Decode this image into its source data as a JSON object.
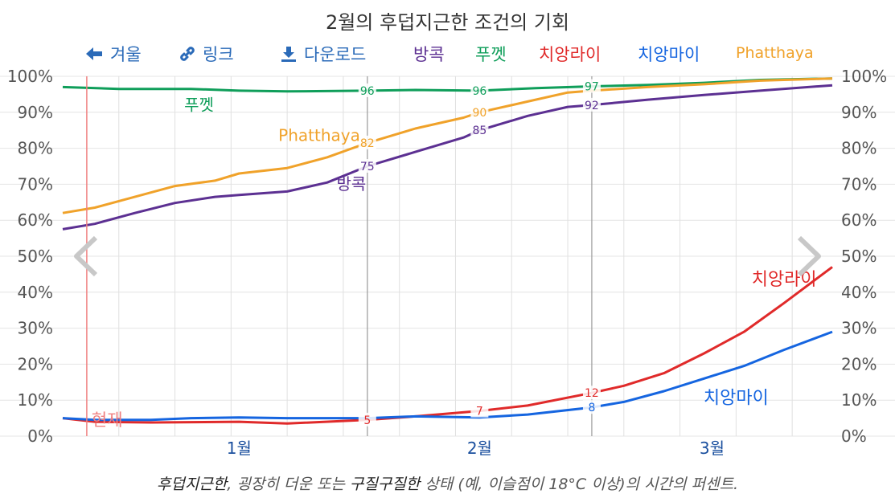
{
  "title": "2월의 후덥지근한 조건의 기회",
  "toolbar": {
    "winter_label": "겨울",
    "link_label": "링크",
    "download_label": "다운로드",
    "series_toggles": [
      "방콕",
      "푸껫",
      "치앙라이",
      "치앙마이",
      "Phatthaya"
    ]
  },
  "caption": {
    "part1": "후덥지근한",
    "part2": ", 굉장히 더운",
    "part3": " 또는 ",
    "part4": "구질구질한",
    "part5": " 상태 (예, 이슬점이 18°C 이상)의 시간의 퍼센트."
  },
  "colors": {
    "bangkok": "#5c3092",
    "phuket": "#0f9e5a",
    "chiangrai": "#e02a2a",
    "chiangmai": "#1565e0",
    "pattaya": "#f0a22a",
    "toolbar": "#2a6ab8",
    "now_line": "#f08080",
    "month_label": "#1a4f9e"
  },
  "icons": [
    "left-arrow-icon",
    "link-icon",
    "download-icon",
    "prev-chevron-icon",
    "next-chevron-icon"
  ],
  "chart_data": {
    "type": "line",
    "x_unit": "date",
    "x_range": [
      "2022-12-25",
      "2023-03-31"
    ],
    "x_month_labels": [
      {
        "label": "1월",
        "date": "2023-01-16"
      },
      {
        "label": "2월",
        "date": "2023-02-15"
      },
      {
        "label": "3월",
        "date": "2023-03-16"
      }
    ],
    "now_marker": {
      "label": "현재",
      "date": "2022-12-28"
    },
    "highlight_dates": [
      "2023-02-01",
      "2023-03-01"
    ],
    "ylim": [
      0,
      100
    ],
    "y_ticks": [
      "0%",
      "10%",
      "20%",
      "30%",
      "40%",
      "50%",
      "60%",
      "70%",
      "80%",
      "90%",
      "100%"
    ],
    "grid": true,
    "series": [
      {
        "name": "푸껫",
        "color": "#0f9e5a",
        "inline_label": "푸껫",
        "points": [
          [
            "2022-12-25",
            97
          ],
          [
            "2023-01-01",
            96.5
          ],
          [
            "2023-01-10",
            96.5
          ],
          [
            "2023-01-16",
            96
          ],
          [
            "2023-01-22",
            95.8
          ],
          [
            "2023-02-01",
            96
          ],
          [
            "2023-02-07",
            96.2
          ],
          [
            "2023-02-15",
            96
          ],
          [
            "2023-02-22",
            96.7
          ],
          [
            "2023-03-01",
            97.2
          ],
          [
            "2023-03-08",
            97.6
          ],
          [
            "2023-03-15",
            98.2
          ],
          [
            "2023-03-22",
            99
          ],
          [
            "2023-03-31",
            99.4
          ]
        ],
        "data_labels": [
          [
            "2023-02-01",
            "96"
          ],
          [
            "2023-02-15",
            "96"
          ],
          [
            "2023-03-01",
            "97"
          ]
        ]
      },
      {
        "name": "Phatthaya",
        "color": "#f0a22a",
        "inline_label": "Phatthaya",
        "points": [
          [
            "2022-12-25",
            62
          ],
          [
            "2022-12-29",
            63.5
          ],
          [
            "2023-01-03",
            66.5
          ],
          [
            "2023-01-08",
            69.5
          ],
          [
            "2023-01-13",
            71
          ],
          [
            "2023-01-16",
            73
          ],
          [
            "2023-01-22",
            74.5
          ],
          [
            "2023-01-27",
            77.5
          ],
          [
            "2023-02-01",
            81.5
          ],
          [
            "2023-02-07",
            85.5
          ],
          [
            "2023-02-13",
            88.5
          ],
          [
            "2023-02-15",
            90
          ],
          [
            "2023-02-21",
            93
          ],
          [
            "2023-02-26",
            95.5
          ],
          [
            "2023-03-01",
            96
          ],
          [
            "2023-03-08",
            97
          ],
          [
            "2023-03-15",
            97.8
          ],
          [
            "2023-03-22",
            98.8
          ],
          [
            "2023-03-31",
            99.4
          ]
        ],
        "data_labels": [
          [
            "2023-02-01",
            "82"
          ],
          [
            "2023-02-15",
            "90"
          ]
        ]
      },
      {
        "name": "방콕",
        "color": "#5c3092",
        "inline_label": "방콕",
        "points": [
          [
            "2022-12-25",
            57.5
          ],
          [
            "2022-12-29",
            59
          ],
          [
            "2023-01-03",
            62
          ],
          [
            "2023-01-08",
            64.8
          ],
          [
            "2023-01-13",
            66.5
          ],
          [
            "2023-01-16",
            67
          ],
          [
            "2023-01-22",
            68
          ],
          [
            "2023-01-27",
            70.5
          ],
          [
            "2023-02-01",
            75
          ],
          [
            "2023-02-07",
            79
          ],
          [
            "2023-02-13",
            83
          ],
          [
            "2023-02-15",
            85
          ],
          [
            "2023-02-21",
            89
          ],
          [
            "2023-02-26",
            91.5
          ],
          [
            "2023-03-01",
            92
          ],
          [
            "2023-03-08",
            93.5
          ],
          [
            "2023-03-15",
            94.8
          ],
          [
            "2023-03-22",
            96
          ],
          [
            "2023-03-31",
            97.5
          ]
        ],
        "data_labels": [
          [
            "2023-02-01",
            "75"
          ],
          [
            "2023-02-15",
            "85"
          ],
          [
            "2023-03-01",
            "92"
          ]
        ]
      },
      {
        "name": "치앙라이",
        "color": "#e02a2a",
        "inline_label": "치앙라이",
        "points": [
          [
            "2022-12-25",
            5
          ],
          [
            "2022-12-29",
            4
          ],
          [
            "2023-01-05",
            3.8
          ],
          [
            "2023-01-16",
            4
          ],
          [
            "2023-01-22",
            3.5
          ],
          [
            "2023-02-01",
            4.5
          ],
          [
            "2023-02-07",
            5.5
          ],
          [
            "2023-02-15",
            7
          ],
          [
            "2023-02-21",
            8.5
          ],
          [
            "2023-03-01",
            12
          ],
          [
            "2023-03-05",
            14
          ],
          [
            "2023-03-10",
            17.5
          ],
          [
            "2023-03-15",
            23
          ],
          [
            "2023-03-20",
            29
          ],
          [
            "2023-03-25",
            37
          ],
          [
            "2023-03-31",
            47
          ]
        ],
        "data_labels": [
          [
            "2023-02-01",
            "5"
          ],
          [
            "2023-02-15",
            "7"
          ],
          [
            "2023-03-01",
            "12"
          ]
        ]
      },
      {
        "name": "치앙마이",
        "color": "#1565e0",
        "inline_label": "치앙마이",
        "points": [
          [
            "2022-12-25",
            5
          ],
          [
            "2022-12-29",
            4.5
          ],
          [
            "2023-01-05",
            4.5
          ],
          [
            "2023-01-10",
            5
          ],
          [
            "2023-01-16",
            5.2
          ],
          [
            "2023-01-22",
            5
          ],
          [
            "2023-02-01",
            5
          ],
          [
            "2023-02-07",
            5.5
          ],
          [
            "2023-02-15",
            5.2
          ],
          [
            "2023-02-21",
            6
          ],
          [
            "2023-03-01",
            8
          ],
          [
            "2023-03-05",
            9.5
          ],
          [
            "2023-03-10",
            12.5
          ],
          [
            "2023-03-15",
            16
          ],
          [
            "2023-03-20",
            19.5
          ],
          [
            "2023-03-25",
            24
          ],
          [
            "2023-03-31",
            29
          ]
        ],
        "data_labels": [
          [
            "2023-03-01",
            "8"
          ]
        ]
      }
    ]
  }
}
